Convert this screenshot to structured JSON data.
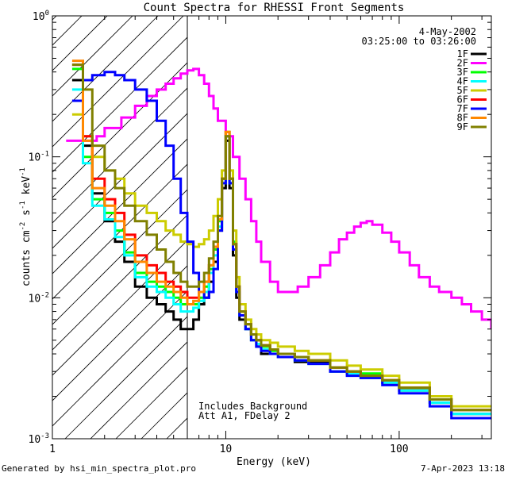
{
  "chart_data": {
    "type": "line",
    "title": "Count Spectra for RHESSI Front Segments",
    "xlabel": "Energy (keV)",
    "ylabel": {
      "base": "counts cm",
      "exp1": "-2",
      "mid1": " s",
      "exp2": "-1",
      "mid2": " keV",
      "exp3": "-1"
    },
    "xscale": "log",
    "yscale": "log",
    "xlim": [
      1,
      340
    ],
    "ylim": [
      0.001,
      1.0
    ],
    "x_tick_labels": [
      "1",
      "10",
      "100"
    ],
    "y_tick_labels": [
      {
        "base": "10",
        "exp": "0"
      },
      {
        "base": "10",
        "exp": "-1"
      },
      {
        "base": "10",
        "exp": "-2"
      },
      {
        "base": "10",
        "exp": "-3"
      }
    ],
    "date": "4-May-2002",
    "time_range": "03:25:00 to 03:26:00",
    "annotations": [
      "Includes Background",
      "Att A1, FDelay 2"
    ],
    "excluded_region_keV": [
      1,
      6
    ],
    "footer_left": "Generated by hsi_min_spectra_plot.pro",
    "footer_right": "7-Apr-2023 13:18",
    "series": [
      {
        "name": "1F",
        "color": "#000000",
        "x": [
          1.3,
          1.5,
          1.7,
          2.0,
          2.3,
          2.6,
          3.0,
          3.5,
          4.0,
          4.5,
          5.0,
          5.5,
          6.0,
          6.5,
          7.0,
          7.5,
          8.0,
          8.5,
          9.0,
          9.5,
          10.0,
          10.5,
          11.0,
          11.5,
          12.0,
          13.0,
          14.0,
          15.0,
          16.0,
          18.0,
          20.0,
          25.0,
          30.0,
          40.0,
          50.0,
          60.0,
          80.0,
          100.0,
          150.0,
          200.0
        ],
        "y": [
          0.35,
          0.12,
          0.055,
          0.035,
          0.025,
          0.018,
          0.012,
          0.01,
          0.009,
          0.008,
          0.007,
          0.006,
          0.006,
          0.007,
          0.009,
          0.01,
          0.013,
          0.018,
          0.03,
          0.06,
          0.13,
          0.06,
          0.02,
          0.01,
          0.007,
          0.006,
          0.005,
          0.0045,
          0.004,
          0.004,
          0.004,
          0.0035,
          0.0035,
          0.003,
          0.003,
          0.0028,
          0.0025,
          0.0022,
          0.0018,
          0.0015
        ]
      },
      {
        "name": "2F",
        "color": "#ff00ff",
        "x": [
          1.2,
          1.5,
          1.8,
          2.0,
          2.5,
          3.0,
          3.5,
          4.0,
          4.5,
          5.0,
          5.5,
          6.0,
          6.5,
          7.0,
          7.5,
          8.0,
          8.5,
          9.0,
          10.0,
          11.0,
          12.0,
          13.0,
          14.0,
          15.0,
          16.0,
          18.0,
          20.0,
          23.0,
          26.0,
          30.0,
          35.0,
          40.0,
          45.0,
          50.0,
          55.0,
          60.0,
          65.0,
          70.0,
          80.0,
          90.0,
          100.0,
          115.0,
          130.0,
          150.0,
          170.0,
          200.0,
          230.0,
          260.0,
          300.0,
          340.0
        ],
        "y": [
          0.13,
          0.13,
          0.14,
          0.16,
          0.19,
          0.23,
          0.27,
          0.3,
          0.33,
          0.36,
          0.39,
          0.41,
          0.42,
          0.38,
          0.33,
          0.27,
          0.22,
          0.18,
          0.14,
          0.1,
          0.07,
          0.05,
          0.035,
          0.025,
          0.018,
          0.013,
          0.011,
          0.011,
          0.012,
          0.014,
          0.017,
          0.021,
          0.026,
          0.029,
          0.032,
          0.034,
          0.035,
          0.033,
          0.029,
          0.025,
          0.021,
          0.017,
          0.014,
          0.012,
          0.011,
          0.01,
          0.009,
          0.008,
          0.007,
          0.006
        ]
      },
      {
        "name": "3F",
        "color": "#00ff00",
        "x": [
          1.3,
          1.5,
          1.7,
          2.0,
          2.3,
          2.6,
          3.0,
          3.5,
          4.0,
          4.5,
          5.0,
          5.5,
          6.0,
          6.5,
          7.0,
          7.5,
          8.0,
          8.5,
          9.0,
          9.5,
          10.0,
          10.5,
          11.0,
          11.5,
          12.0,
          13.0,
          14.0,
          15.0,
          16.0,
          18.0,
          20.0,
          25.0,
          30.0,
          40.0,
          50.0,
          60.0,
          80.0,
          100.0,
          150.0,
          200.0
        ],
        "y": [
          0.42,
          0.1,
          0.05,
          0.04,
          0.03,
          0.021,
          0.015,
          0.013,
          0.012,
          0.011,
          0.01,
          0.009,
          0.009,
          0.009,
          0.01,
          0.012,
          0.016,
          0.022,
          0.035,
          0.07,
          0.15,
          0.07,
          0.025,
          0.012,
          0.008,
          0.0065,
          0.0055,
          0.005,
          0.0045,
          0.0042,
          0.004,
          0.0038,
          0.0036,
          0.0032,
          0.003,
          0.0029,
          0.0026,
          0.0023,
          0.0019,
          0.0016
        ]
      },
      {
        "name": "4F",
        "color": "#00ffff",
        "x": [
          1.3,
          1.5,
          1.7,
          2.0,
          2.3,
          2.6,
          3.0,
          3.5,
          4.0,
          4.5,
          5.0,
          5.5,
          6.0,
          6.5,
          7.0,
          7.5,
          8.0,
          8.5,
          9.0,
          9.5,
          10.0,
          10.5,
          11.0,
          11.5,
          12.0,
          13.0,
          14.0,
          15.0,
          16.0,
          18.0,
          20.0,
          25.0,
          30.0,
          40.0,
          50.0,
          60.0,
          80.0,
          100.0,
          150.0,
          200.0
        ],
        "y": [
          0.3,
          0.09,
          0.045,
          0.036,
          0.027,
          0.02,
          0.014,
          0.012,
          0.011,
          0.01,
          0.009,
          0.008,
          0.008,
          0.0085,
          0.0095,
          0.011,
          0.015,
          0.02,
          0.032,
          0.065,
          0.14,
          0.065,
          0.022,
          0.011,
          0.0075,
          0.006,
          0.005,
          0.0047,
          0.0043,
          0.004,
          0.0038,
          0.0036,
          0.0034,
          0.003,
          0.0029,
          0.0027,
          0.0025,
          0.0022,
          0.0018,
          0.0015
        ]
      },
      {
        "name": "5F",
        "color": "#cccc00",
        "x": [
          1.3,
          1.5,
          1.7,
          2.0,
          2.3,
          2.6,
          3.0,
          3.5,
          4.0,
          4.5,
          5.0,
          5.5,
          6.0,
          6.5,
          7.0,
          7.5,
          8.0,
          8.5,
          9.0,
          9.5,
          10.0,
          10.5,
          11.0,
          11.5,
          12.0,
          13.0,
          14.0,
          15.0,
          16.0,
          18.0,
          20.0,
          25.0,
          30.0,
          40.0,
          50.0,
          60.0,
          80.0,
          100.0,
          150.0,
          200.0
        ],
        "y": [
          0.2,
          0.14,
          0.1,
          0.08,
          0.07,
          0.055,
          0.045,
          0.04,
          0.035,
          0.03,
          0.028,
          0.025,
          0.024,
          0.023,
          0.024,
          0.026,
          0.03,
          0.038,
          0.05,
          0.08,
          0.15,
          0.08,
          0.03,
          0.014,
          0.009,
          0.007,
          0.006,
          0.0055,
          0.005,
          0.0048,
          0.0045,
          0.0042,
          0.004,
          0.0036,
          0.0033,
          0.0031,
          0.0028,
          0.0025,
          0.002,
          0.0017
        ]
      },
      {
        "name": "6F",
        "color": "#ff0000",
        "x": [
          1.3,
          1.5,
          1.7,
          2.0,
          2.3,
          2.6,
          3.0,
          3.5,
          4.0,
          4.5,
          5.0,
          5.5,
          6.0,
          6.5,
          7.0,
          7.5,
          8.0,
          8.5,
          9.0,
          9.5,
          10.0,
          10.5,
          11.0,
          11.5,
          12.0,
          13.0,
          14.0,
          15.0,
          16.0,
          18.0,
          20.0,
          25.0,
          30.0,
          40.0,
          50.0,
          60.0,
          80.0,
          100.0,
          150.0,
          200.0
        ],
        "y": [
          0.45,
          0.14,
          0.07,
          0.05,
          0.04,
          0.028,
          0.02,
          0.017,
          0.015,
          0.013,
          0.012,
          0.011,
          0.01,
          0.01,
          0.011,
          0.013,
          0.017,
          0.023,
          0.036,
          0.07,
          0.15,
          0.07,
          0.024,
          0.012,
          0.008,
          0.0065,
          0.0055,
          0.005,
          0.0046,
          0.0043,
          0.004,
          0.0038,
          0.0036,
          0.0032,
          0.003,
          0.0028,
          0.0026,
          0.0023,
          0.0019,
          0.0016
        ]
      },
      {
        "name": "7F",
        "color": "#0000ff",
        "x": [
          1.3,
          1.5,
          1.7,
          2.0,
          2.3,
          2.6,
          3.0,
          3.5,
          4.0,
          4.5,
          5.0,
          5.5,
          6.0,
          6.5,
          7.0,
          7.5,
          8.0,
          8.5,
          9.0,
          9.5,
          10.0,
          10.5,
          11.0,
          11.5,
          12.0,
          13.0,
          14.0,
          15.0,
          16.0,
          18.0,
          20.0,
          25.0,
          30.0,
          40.0,
          50.0,
          60.0,
          80.0,
          100.0,
          150.0,
          200.0
        ],
        "y": [
          0.25,
          0.35,
          0.38,
          0.4,
          0.38,
          0.35,
          0.3,
          0.25,
          0.18,
          0.12,
          0.07,
          0.04,
          0.025,
          0.015,
          0.011,
          0.01,
          0.011,
          0.016,
          0.03,
          0.065,
          0.14,
          0.065,
          0.022,
          0.011,
          0.0075,
          0.006,
          0.005,
          0.0045,
          0.0042,
          0.004,
          0.0038,
          0.0036,
          0.0034,
          0.003,
          0.0028,
          0.0027,
          0.0024,
          0.0021,
          0.0017,
          0.0014
        ]
      },
      {
        "name": "8F",
        "color": "#ff8800",
        "x": [
          1.3,
          1.5,
          1.7,
          2.0,
          2.3,
          2.6,
          3.0,
          3.5,
          4.0,
          4.5,
          5.0,
          5.5,
          6.0,
          6.5,
          7.0,
          7.5,
          8.0,
          8.5,
          9.0,
          9.5,
          10.0,
          10.5,
          11.0,
          11.5,
          12.0,
          13.0,
          14.0,
          15.0,
          16.0,
          18.0,
          20.0,
          25.0,
          30.0,
          40.0,
          50.0,
          60.0,
          80.0,
          100.0,
          150.0,
          200.0
        ],
        "y": [
          0.48,
          0.13,
          0.06,
          0.045,
          0.035,
          0.026,
          0.018,
          0.015,
          0.013,
          0.012,
          0.011,
          0.01,
          0.009,
          0.0095,
          0.011,
          0.013,
          0.017,
          0.023,
          0.036,
          0.07,
          0.15,
          0.07,
          0.024,
          0.012,
          0.008,
          0.0065,
          0.0055,
          0.005,
          0.0046,
          0.0043,
          0.004,
          0.0038,
          0.0036,
          0.0032,
          0.003,
          0.0028,
          0.0026,
          0.0023,
          0.0019,
          0.0016
        ]
      },
      {
        "name": "9F",
        "color": "#808000",
        "x": [
          1.3,
          1.5,
          1.7,
          2.0,
          2.3,
          2.6,
          3.0,
          3.5,
          4.0,
          4.5,
          5.0,
          5.5,
          6.0,
          6.5,
          7.0,
          7.5,
          8.0,
          8.5,
          9.0,
          9.5,
          10.0,
          10.5,
          11.0,
          11.5,
          12.0,
          13.0,
          14.0,
          15.0,
          16.0,
          18.0,
          20.0,
          25.0,
          30.0,
          40.0,
          50.0,
          60.0,
          80.0,
          100.0,
          150.0,
          200.0
        ],
        "y": [
          0.45,
          0.3,
          0.12,
          0.08,
          0.06,
          0.045,
          0.035,
          0.028,
          0.022,
          0.018,
          0.015,
          0.013,
          0.012,
          0.012,
          0.013,
          0.015,
          0.019,
          0.025,
          0.038,
          0.07,
          0.14,
          0.07,
          0.024,
          0.012,
          0.008,
          0.0065,
          0.0055,
          0.005,
          0.0046,
          0.0043,
          0.004,
          0.0038,
          0.0036,
          0.0032,
          0.003,
          0.0028,
          0.0026,
          0.0023,
          0.0019,
          0.0016
        ]
      }
    ]
  }
}
